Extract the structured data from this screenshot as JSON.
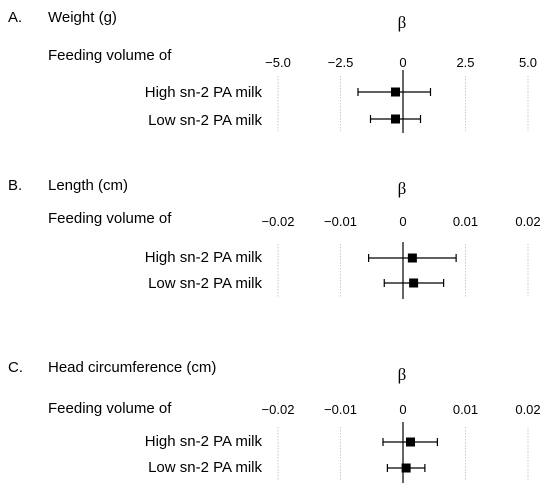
{
  "chart_data": [
    {
      "type": "forest",
      "panel_letter": "A.",
      "title": "Weight (g)",
      "axis_symbol": "β",
      "group_label": "Feeding volume of",
      "xlim": [
        -5.0,
        5.0
      ],
      "ticks": [
        -5.0,
        -2.5,
        0,
        2.5,
        5.0
      ],
      "tick_labels": [
        "−5.0",
        "−2.5",
        "0",
        "2.5",
        "5.0"
      ],
      "rows": [
        {
          "label": "High sn-2 PA milk",
          "estimate": -0.3,
          "ci": [
            -1.8,
            1.1
          ]
        },
        {
          "label": "Low sn-2 PA milk",
          "estimate": -0.3,
          "ci": [
            -1.3,
            0.7
          ]
        }
      ],
      "grid": true
    },
    {
      "type": "forest",
      "panel_letter": "B.",
      "title": "Length (cm)",
      "axis_symbol": "β",
      "group_label": "Feeding volume of",
      "xlim": [
        -0.02,
        0.02
      ],
      "ticks": [
        -0.02,
        -0.01,
        0,
        0.01,
        0.02
      ],
      "tick_labels": [
        "−0.02",
        "−0.01",
        "0",
        "0.01",
        "0.02"
      ],
      "rows": [
        {
          "label": "High sn-2 PA milk",
          "estimate": 0.0015,
          "ci": [
            -0.0055,
            0.0085
          ]
        },
        {
          "label": "Low sn-2 PA milk",
          "estimate": 0.0017,
          "ci": [
            -0.003,
            0.0065
          ]
        }
      ],
      "grid": true
    },
    {
      "type": "forest",
      "panel_letter": "C.",
      "title": "Head circumference (cm)",
      "axis_symbol": "β",
      "group_label": "Feeding volume of",
      "xlim": [
        -0.02,
        0.02
      ],
      "ticks": [
        -0.02,
        -0.01,
        0,
        0.01,
        0.02
      ],
      "tick_labels": [
        "−0.02",
        "−0.01",
        "0",
        "0.01",
        "0.02"
      ],
      "rows": [
        {
          "label": "High sn-2 PA milk",
          "estimate": 0.0012,
          "ci": [
            -0.0032,
            0.0055
          ]
        },
        {
          "label": "Low sn-2 PA milk",
          "estimate": 0.0005,
          "ci": [
            -0.0025,
            0.0035
          ]
        }
      ],
      "grid": true
    }
  ]
}
